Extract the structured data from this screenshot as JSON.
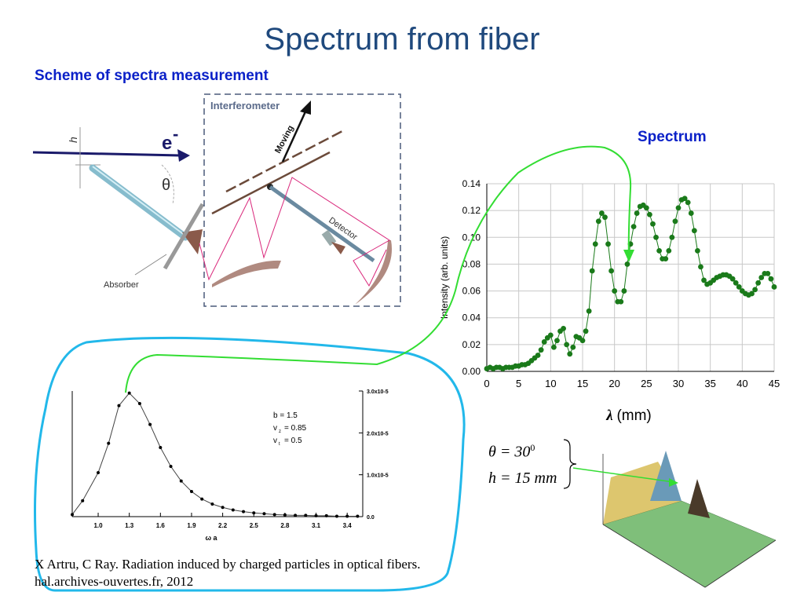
{
  "title": "Spectrum from fiber",
  "scheme_heading": "Scheme of spectra measurement",
  "spectrum_heading": "Spectrum",
  "scheme": {
    "electron_label": "e",
    "electron_sup": "-",
    "h_label": "h",
    "theta_label": "θ",
    "interferometer_label": "Interferometer",
    "moving_label": "Moving",
    "detector_label": "Detector",
    "absorber_label": "Absorber"
  },
  "params": {
    "theta_line": "θ = 30",
    "theta_sup": "0",
    "h_line": "h = 15 mm"
  },
  "caption": "X Artru, C Ray. Radiation induced by charged particles in optical fibers.  hal.archives-ouvertes.fr, 2012",
  "colors": {
    "title": "#1f497d",
    "heading": "#0b21c8",
    "spectrum_points": "#1a7a1a",
    "green_arrow": "#33dd33",
    "cyan_outline": "#22b8ea",
    "mirror_rays": "#d9267a"
  },
  "chart_data": [
    {
      "type": "scatter",
      "title": "",
      "xlabel": "λ (mm)",
      "ylabel": "Intensity (arb. units)",
      "xlim": [
        0,
        45
      ],
      "ylim": [
        0,
        0.14
      ],
      "xticks": [
        "0",
        "5",
        "10",
        "15",
        "20",
        "25",
        "30",
        "35",
        "40",
        "45"
      ],
      "yticks": [
        "0.00",
        "0.02",
        "0.04",
        "0.06",
        "0.08",
        "0.10",
        "0.12",
        "0.14"
      ],
      "grid": true,
      "x": [
        0,
        0.5,
        1,
        1.5,
        2,
        2.5,
        3,
        3.5,
        4,
        4.5,
        5,
        5.5,
        6,
        6.5,
        7,
        7.5,
        8,
        8.5,
        9,
        9.5,
        10,
        10.5,
        11,
        11.5,
        12,
        12.5,
        13,
        13.5,
        14,
        14.5,
        15,
        15.5,
        16,
        16.5,
        17,
        17.5,
        18,
        18.5,
        19,
        19.5,
        20,
        20.5,
        21,
        21.5,
        22,
        22.5,
        23,
        23.5,
        24,
        24.5,
        25,
        25.5,
        26,
        26.5,
        27,
        27.5,
        28,
        28.5,
        29,
        29.5,
        30,
        30.5,
        31,
        31.5,
        32,
        32.5,
        33,
        33.5,
        34,
        34.5,
        35,
        35.5,
        36,
        36.5,
        37,
        37.5,
        38,
        38.5,
        39,
        39.5,
        40,
        40.5,
        41,
        41.5,
        42,
        42.5,
        43,
        43.5,
        44,
        44.5,
        45
      ],
      "y": [
        0.002,
        0.003,
        0.002,
        0.003,
        0.003,
        0.002,
        0.003,
        0.003,
        0.003,
        0.004,
        0.004,
        0.005,
        0.005,
        0.006,
        0.008,
        0.01,
        0.012,
        0.016,
        0.022,
        0.025,
        0.027,
        0.018,
        0.023,
        0.03,
        0.032,
        0.02,
        0.013,
        0.018,
        0.026,
        0.025,
        0.023,
        0.03,
        0.045,
        0.075,
        0.095,
        0.112,
        0.118,
        0.115,
        0.095,
        0.075,
        0.06,
        0.052,
        0.052,
        0.06,
        0.08,
        0.095,
        0.108,
        0.118,
        0.123,
        0.124,
        0.122,
        0.117,
        0.11,
        0.1,
        0.09,
        0.084,
        0.084,
        0.09,
        0.1,
        0.112,
        0.122,
        0.128,
        0.129,
        0.126,
        0.118,
        0.105,
        0.09,
        0.078,
        0.068,
        0.065,
        0.066,
        0.068,
        0.07,
        0.071,
        0.072,
        0.072,
        0.071,
        0.069,
        0.066,
        0.063,
        0.06,
        0.058,
        0.057,
        0.058,
        0.061,
        0.066,
        0.07,
        0.073,
        0.073,
        0.069,
        0.063
      ]
    },
    {
      "type": "line",
      "title": "",
      "xlabel": "ω a",
      "ylabel": "",
      "xlim": [
        0.75,
        3.55
      ],
      "ylim": [
        0,
        3.0
      ],
      "xticks": [
        "1.0",
        "1.3",
        "1.6",
        "1.9",
        "2.2",
        "2.5",
        "2.8",
        "3.1",
        "3.4"
      ],
      "yticks_right": [
        "0.0",
        "1.0x10-5",
        "2.0x10-5",
        "3.0x10-5"
      ],
      "annotations": [
        "b = 1.5",
        "v",
        "z",
        "= 0.85",
        "v",
        "t",
        "= 0.5"
      ],
      "x": [
        0.75,
        0.85,
        1.0,
        1.1,
        1.2,
        1.3,
        1.4,
        1.5,
        1.6,
        1.7,
        1.8,
        1.9,
        2.0,
        2.1,
        2.2,
        2.3,
        2.4,
        2.5,
        2.6,
        2.7,
        2.8,
        2.9,
        3.0,
        3.1,
        3.2,
        3.3,
        3.4,
        3.5
      ],
      "y": [
        0.05,
        0.38,
        1.05,
        1.75,
        2.65,
        2.95,
        2.7,
        2.2,
        1.65,
        1.2,
        0.85,
        0.6,
        0.42,
        0.3,
        0.22,
        0.16,
        0.12,
        0.09,
        0.07,
        0.05,
        0.04,
        0.03,
        0.03,
        0.02,
        0.02,
        0.01,
        0.01,
        0.01
      ]
    }
  ]
}
